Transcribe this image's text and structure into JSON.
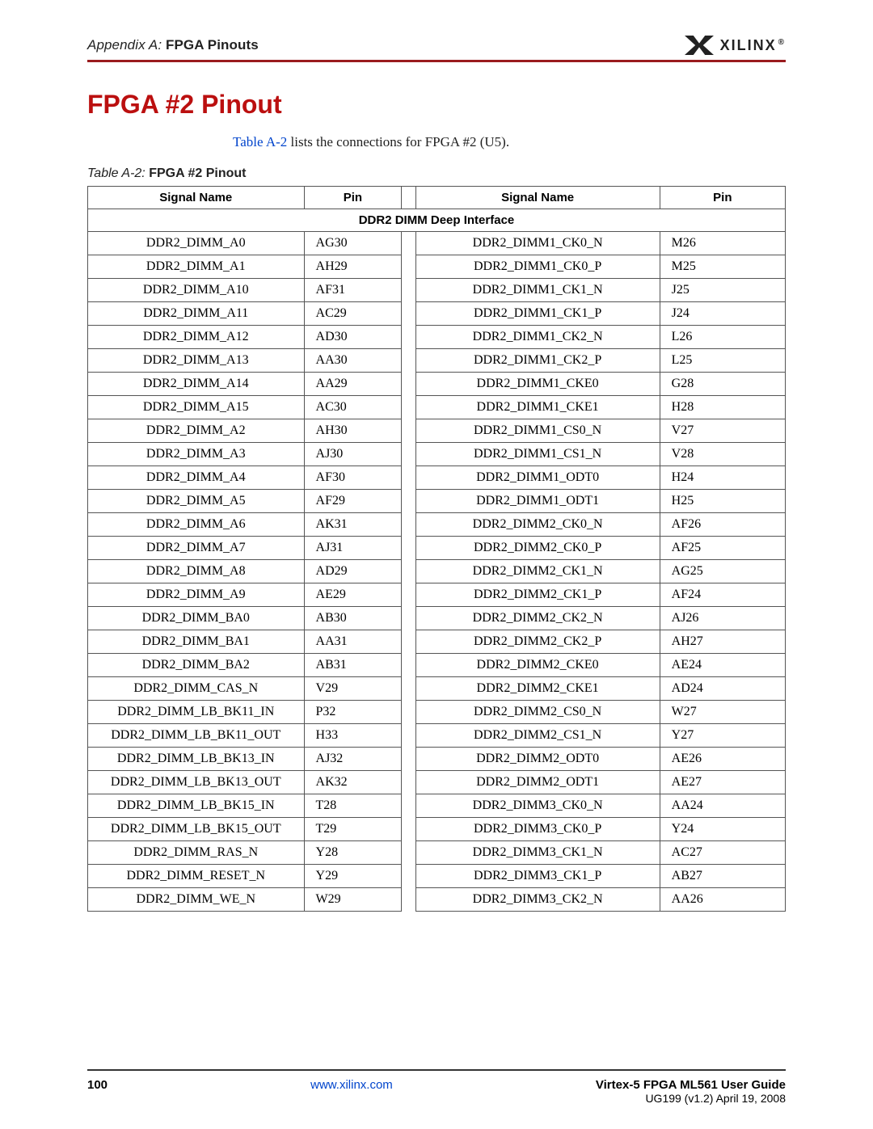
{
  "header": {
    "section_prefix": "Appendix A:",
    "section_title": "FPGA Pinouts",
    "logo_text": "XILINX",
    "logo_r": "®",
    "rule_color": "#9a1b1e"
  },
  "title": {
    "text": "FPGA #2 Pinout",
    "color": "#bb0f0f"
  },
  "intro": {
    "link_text": "Table A-2",
    "link_color": "#0044cc",
    "rest": " lists the connections for FPGA #2 (U5)."
  },
  "caption": {
    "prefix": "Table A-2:",
    "title": "FPGA #2 Pinout"
  },
  "table": {
    "columns": [
      "Signal Name",
      "Pin",
      "Signal Name",
      "Pin"
    ],
    "section_header": "DDR2 DIMM Deep Interface",
    "rows": [
      [
        "DDR2_DIMM_A0",
        "AG30",
        "DDR2_DIMM1_CK0_N",
        "M26"
      ],
      [
        "DDR2_DIMM_A1",
        "AH29",
        "DDR2_DIMM1_CK0_P",
        "M25"
      ],
      [
        "DDR2_DIMM_A10",
        "AF31",
        "DDR2_DIMM1_CK1_N",
        "J25"
      ],
      [
        "DDR2_DIMM_A11",
        "AC29",
        "DDR2_DIMM1_CK1_P",
        "J24"
      ],
      [
        "DDR2_DIMM_A12",
        "AD30",
        "DDR2_DIMM1_CK2_N",
        "L26"
      ],
      [
        "DDR2_DIMM_A13",
        "AA30",
        "DDR2_DIMM1_CK2_P",
        "L25"
      ],
      [
        "DDR2_DIMM_A14",
        "AA29",
        "DDR2_DIMM1_CKE0",
        "G28"
      ],
      [
        "DDR2_DIMM_A15",
        "AC30",
        "DDR2_DIMM1_CKE1",
        "H28"
      ],
      [
        "DDR2_DIMM_A2",
        "AH30",
        "DDR2_DIMM1_CS0_N",
        "V27"
      ],
      [
        "DDR2_DIMM_A3",
        "AJ30",
        "DDR2_DIMM1_CS1_N",
        "V28"
      ],
      [
        "DDR2_DIMM_A4",
        "AF30",
        "DDR2_DIMM1_ODT0",
        "H24"
      ],
      [
        "DDR2_DIMM_A5",
        "AF29",
        "DDR2_DIMM1_ODT1",
        "H25"
      ],
      [
        "DDR2_DIMM_A6",
        "AK31",
        "DDR2_DIMM2_CK0_N",
        "AF26"
      ],
      [
        "DDR2_DIMM_A7",
        "AJ31",
        "DDR2_DIMM2_CK0_P",
        "AF25"
      ],
      [
        "DDR2_DIMM_A8",
        "AD29",
        "DDR2_DIMM2_CK1_N",
        "AG25"
      ],
      [
        "DDR2_DIMM_A9",
        "AE29",
        "DDR2_DIMM2_CK1_P",
        "AF24"
      ],
      [
        "DDR2_DIMM_BA0",
        "AB30",
        "DDR2_DIMM2_CK2_N",
        "AJ26"
      ],
      [
        "DDR2_DIMM_BA1",
        "AA31",
        "DDR2_DIMM2_CK2_P",
        "AH27"
      ],
      [
        "DDR2_DIMM_BA2",
        "AB31",
        "DDR2_DIMM2_CKE0",
        "AE24"
      ],
      [
        "DDR2_DIMM_CAS_N",
        "V29",
        "DDR2_DIMM2_CKE1",
        "AD24"
      ],
      [
        "DDR2_DIMM_LB_BK11_IN",
        "P32",
        "DDR2_DIMM2_CS0_N",
        "W27"
      ],
      [
        "DDR2_DIMM_LB_BK11_OUT",
        "H33",
        "DDR2_DIMM2_CS1_N",
        "Y27"
      ],
      [
        "DDR2_DIMM_LB_BK13_IN",
        "AJ32",
        "DDR2_DIMM2_ODT0",
        "AE26"
      ],
      [
        "DDR2_DIMM_LB_BK13_OUT",
        "AK32",
        "DDR2_DIMM2_ODT1",
        "AE27"
      ],
      [
        "DDR2_DIMM_LB_BK15_IN",
        "T28",
        "DDR2_DIMM3_CK0_N",
        "AA24"
      ],
      [
        "DDR2_DIMM_LB_BK15_OUT",
        "T29",
        "DDR2_DIMM3_CK0_P",
        "Y24"
      ],
      [
        "DDR2_DIMM_RAS_N",
        "Y28",
        "DDR2_DIMM3_CK1_N",
        "AC27"
      ],
      [
        "DDR2_DIMM_RESET_N",
        "Y29",
        "DDR2_DIMM3_CK1_P",
        "AB27"
      ],
      [
        "DDR2_DIMM_WE_N",
        "W29",
        "DDR2_DIMM3_CK2_N",
        "AA26"
      ]
    ],
    "border_color": "#555555",
    "header_fontsize": 15,
    "cell_fontsize": 16
  },
  "footer": {
    "page_number": "100",
    "url": "www.xilinx.com",
    "url_color": "#0044cc",
    "guide_title": "Virtex-5 FPGA ML561 User Guide",
    "guide_sub": "UG199 (v1.2) April 19, 2008",
    "rule_color": "#333333"
  }
}
